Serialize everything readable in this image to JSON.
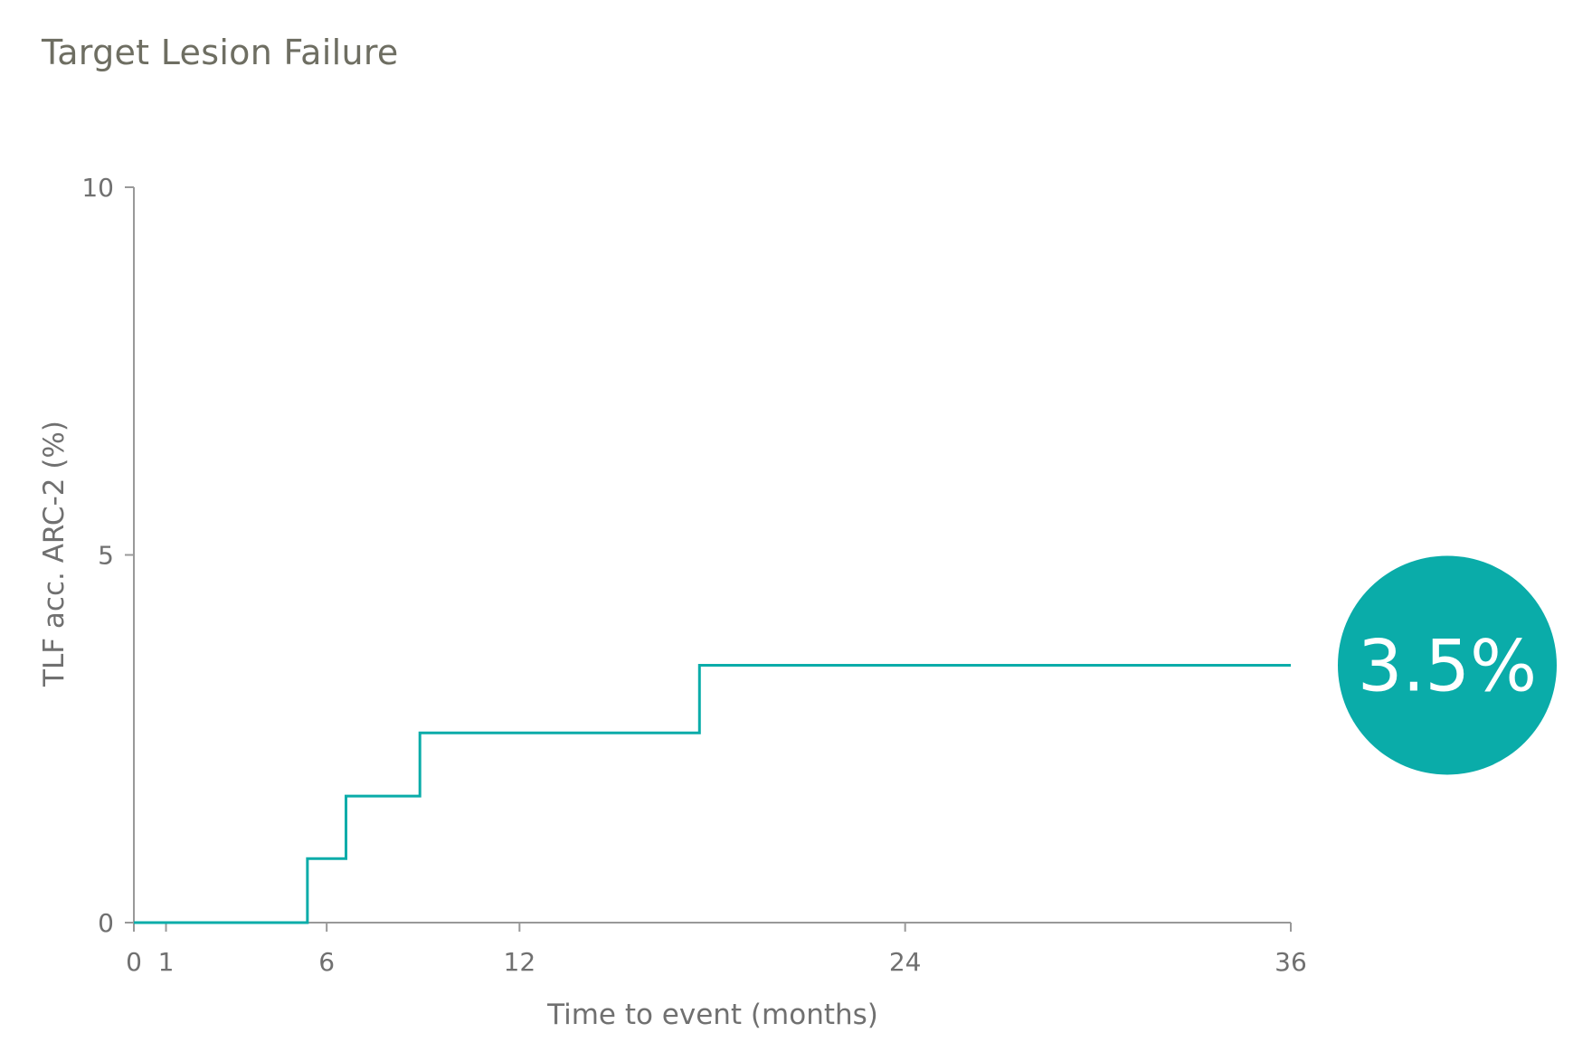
{
  "colors": {
    "series": "#0aaca9",
    "axis": "#999999",
    "text": "#707070",
    "title": "#6e6e62",
    "callout_text": "#ffffff"
  },
  "chart_data": {
    "type": "line",
    "step": true,
    "title": "Target Lesion Failure",
    "xlabel": "Time to event (months)",
    "ylabel": "TLF acc. ARC-2 (%)",
    "xlim": [
      0,
      36
    ],
    "ylim": [
      0,
      10
    ],
    "xticks": [
      0,
      1,
      6,
      12,
      24,
      36
    ],
    "xtick_labels": [
      "0",
      "1",
      "6",
      "12",
      "24",
      "36"
    ],
    "yticks": [
      0,
      5,
      10
    ],
    "ytick_labels": [
      "0",
      "5",
      "10"
    ],
    "grid": false,
    "series": [
      {
        "x": [
          0,
          5.4,
          6.6,
          8.9,
          17.6,
          36
        ],
        "y": [
          0,
          0.87,
          1.72,
          2.58,
          3.5,
          3.5
        ]
      }
    ],
    "annotation": {
      "text": "3.5%",
      "value": 3.5
    }
  }
}
